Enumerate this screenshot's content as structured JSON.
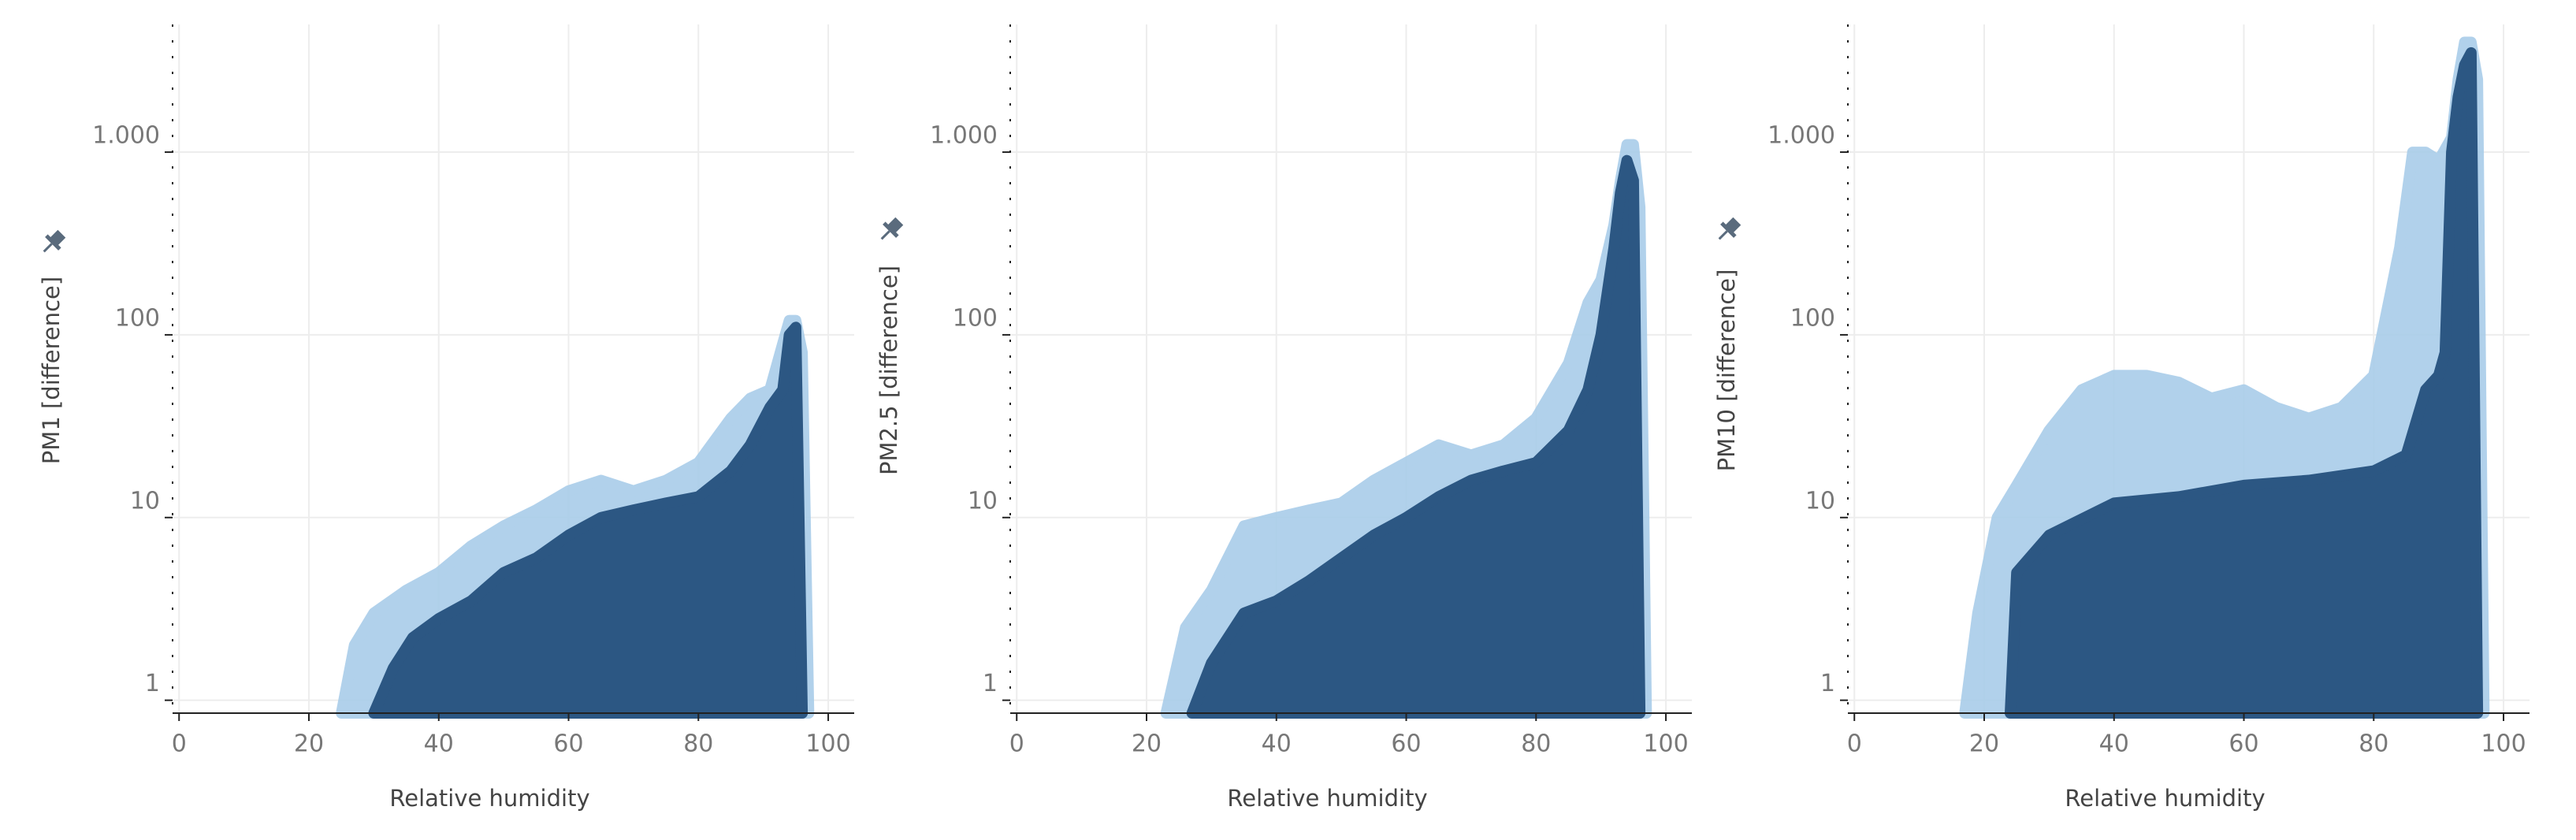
{
  "chart_data": [
    {
      "type": "area",
      "ylabel": "PM1 [difference]",
      "xlabel": "Relative humidity",
      "log_y": true,
      "grid": true,
      "xlim": [
        -1,
        104
      ],
      "xticks": [
        0,
        20,
        40,
        60,
        80,
        100
      ],
      "ylim": [
        0.85,
        5000
      ],
      "yticks": [
        1,
        10,
        100,
        {
          "value": 1000,
          "label": "1.000"
        }
      ],
      "series": [
        {
          "color": "#a9cde9",
          "x": [
            25,
            27,
            30,
            35,
            40,
            45,
            50,
            55,
            60,
            65,
            70,
            75,
            80,
            85,
            88,
            91,
            93,
            94,
            95,
            96,
            97
          ],
          "values": [
            0.85,
            2,
            3,
            4,
            5,
            7,
            9,
            11,
            14,
            16,
            14,
            16,
            20,
            35,
            45,
            50,
            90,
            120,
            120,
            80,
            0.85
          ]
        },
        {
          "color": "#2c5783",
          "x": [
            30,
            33,
            36,
            40,
            45,
            50,
            55,
            60,
            65,
            70,
            75,
            80,
            85,
            88,
            91,
            93,
            94,
            95,
            96
          ],
          "values": [
            0.85,
            1.5,
            2.2,
            2.8,
            3.5,
            5,
            6,
            8,
            10,
            11,
            12,
            13,
            18,
            25,
            40,
            50,
            100,
            110,
            0.85
          ]
        }
      ]
    },
    {
      "type": "area",
      "ylabel": "PM2.5 [difference]",
      "xlabel": "Relative humidity",
      "log_y": true,
      "grid": true,
      "xlim": [
        -1,
        104
      ],
      "xticks": [
        0,
        20,
        40,
        60,
        80,
        100
      ],
      "ylim": [
        0.85,
        5000
      ],
      "yticks": [
        1,
        10,
        100,
        {
          "value": 1000,
          "label": "1.000"
        }
      ],
      "series": [
        {
          "color": "#a9cde9",
          "x": [
            23,
            26,
            30,
            35,
            40,
            45,
            50,
            55,
            60,
            65,
            70,
            75,
            80,
            85,
            88,
            90,
            92,
            93,
            94,
            95,
            96,
            97
          ],
          "values": [
            0.85,
            2.5,
            4,
            9,
            10,
            11,
            12,
            16,
            20,
            25,
            22,
            25,
            35,
            70,
            150,
            200,
            400,
            700,
            1100,
            1100,
            500,
            0.85
          ]
        },
        {
          "color": "#2c5783",
          "x": [
            27,
            30,
            35,
            40,
            45,
            50,
            55,
            60,
            65,
            70,
            75,
            80,
            85,
            88,
            90,
            92,
            93,
            94,
            95,
            96
          ],
          "values": [
            0.85,
            1.6,
            3,
            3.5,
            4.5,
            6,
            8,
            10,
            13,
            16,
            18,
            20,
            30,
            50,
            100,
            300,
            600,
            900,
            700,
            0.85
          ]
        }
      ]
    },
    {
      "type": "area",
      "ylabel": "PM10 [difference]",
      "xlabel": "Relative humidity",
      "log_y": true,
      "grid": true,
      "xlim": [
        -1,
        104
      ],
      "xticks": [
        0,
        20,
        40,
        60,
        80,
        100
      ],
      "ylim": [
        0.85,
        5000
      ],
      "yticks": [
        1,
        10,
        100,
        {
          "value": 1000,
          "label": "1.000"
        }
      ],
      "series": [
        {
          "color": "#a9cde9",
          "x": [
            17,
            19,
            22,
            25,
            30,
            35,
            40,
            45,
            50,
            55,
            60,
            65,
            70,
            75,
            80,
            84,
            86,
            88,
            90,
            92,
            93,
            94,
            95,
            96,
            97
          ],
          "values": [
            0.85,
            3,
            10,
            15,
            30,
            50,
            60,
            60,
            55,
            45,
            50,
            40,
            35,
            40,
            60,
            300,
            1000,
            1000,
            900,
            1200,
            2500,
            4000,
            4000,
            2500,
            0.85
          ]
        },
        {
          "color": "#2c5783",
          "x": [
            24,
            25,
            30,
            40,
            50,
            60,
            70,
            80,
            85,
            88,
            90,
            91,
            92,
            93,
            94,
            95,
            96
          ],
          "values": [
            0.85,
            5,
            8,
            12,
            13,
            15,
            16,
            18,
            22,
            50,
            60,
            80,
            1000,
            2000,
            3000,
            3500,
            0.85
          ]
        }
      ]
    }
  ]
}
